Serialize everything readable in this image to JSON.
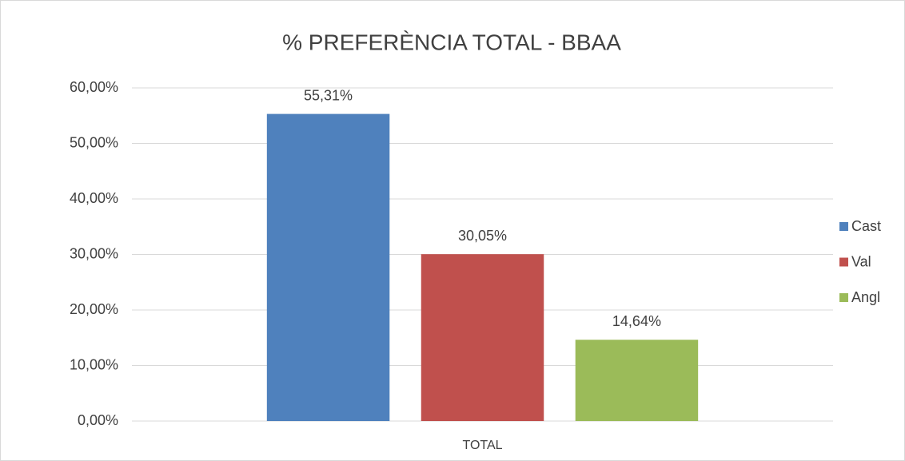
{
  "chart_data": {
    "type": "bar",
    "title": "% PREFERÈNCIA TOTAL - BBAA",
    "categories": [
      "TOTAL"
    ],
    "series": [
      {
        "name": "Cast",
        "color": "#4f81bd",
        "values": [
          55.31
        ],
        "value_labels": [
          "55,31%"
        ]
      },
      {
        "name": "Val",
        "color": "#c0504d",
        "values": [
          30.05
        ],
        "value_labels": [
          "30,05%"
        ]
      },
      {
        "name": "Angl",
        "color": "#9bbb59",
        "values": [
          14.64
        ],
        "value_labels": [
          "14,64%"
        ]
      }
    ],
    "ylim": [
      0,
      60
    ],
    "yticks": [
      {
        "value": 0,
        "label": "0,00%"
      },
      {
        "value": 10,
        "label": "10,00%"
      },
      {
        "value": 20,
        "label": "20,00%"
      },
      {
        "value": 30,
        "label": "30,00%"
      },
      {
        "value": 40,
        "label": "40,00%"
      },
      {
        "value": 50,
        "label": "50,00%"
      },
      {
        "value": 60,
        "label": "60,00%"
      }
    ],
    "grid": true,
    "legend": "right"
  }
}
